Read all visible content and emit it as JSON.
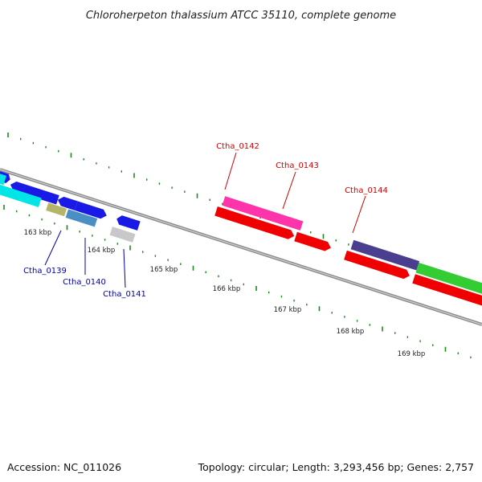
{
  "title": "Chloroherpeton thalassium ATCC 35110, complete genome",
  "footer": {
    "accession": "Accession: NC_011026",
    "summary": "Topology: circular; Length: 3,293,456 bp; Genes: 2,757"
  },
  "colors": {
    "backbone": "#8c8c8c",
    "tick": "#1a8a1a",
    "label_red": "#cc0000",
    "label_blue": "#0000aa"
  },
  "scale_labels": [
    "163 kbp",
    "164 kbp",
    "165 kbp",
    "166 kbp",
    "167 kbp",
    "168 kbp",
    "169 kbp"
  ],
  "gene_labels": [
    {
      "name": "Ctha_0139",
      "color": "#0000aa"
    },
    {
      "name": "Ctha_0140",
      "color": "#0000aa"
    },
    {
      "name": "Ctha_0141",
      "color": "#0000aa"
    },
    {
      "name": "Ctha_0142",
      "color": "#cc0000"
    },
    {
      "name": "Ctha_0143",
      "color": "#cc0000"
    },
    {
      "name": "Ctha_0144",
      "color": "#cc0000"
    }
  ],
  "features": [
    {
      "name": "blue-gene-top-left",
      "color": "#1a1ae6",
      "strand": "+"
    },
    {
      "name": "blue-gene-arrow-left",
      "color": "#1a1ae6",
      "strand": "-"
    },
    {
      "name": "blue-gene-small-left",
      "color": "#1a1ae6",
      "strand": "-"
    },
    {
      "name": "cyan-gene-long",
      "color": "#00e5e5",
      "strand": "+"
    },
    {
      "name": "cyan-gene-short",
      "color": "#00e5e5",
      "strand": "+"
    },
    {
      "name": "blue-gene-arrow-right",
      "color": "#1a1ae6",
      "strand": "+"
    },
    {
      "name": "khaki-gene",
      "color": "#b5b56a",
      "strand": "+"
    },
    {
      "name": "steelblue-gene",
      "color": "#4a8fc4",
      "strand": "+"
    },
    {
      "name": "blue-gene-small-mid",
      "color": "#1a1ae6",
      "strand": "-"
    },
    {
      "name": "gray-gene",
      "color": "#c8c8c8",
      "strand": "+"
    },
    {
      "name": "magenta-gene",
      "color": "#ff33aa",
      "strand": "+"
    },
    {
      "name": "red-gene-1",
      "color": "#f00000",
      "strand": "+"
    },
    {
      "name": "red-gene-2",
      "color": "#f00000",
      "strand": "+"
    },
    {
      "name": "purple-gene",
      "color": "#4a3f8f",
      "strand": "+"
    },
    {
      "name": "red-gene-3",
      "color": "#f00000",
      "strand": "+"
    },
    {
      "name": "green-gene",
      "color": "#33cc33",
      "strand": "+"
    },
    {
      "name": "red-gene-4",
      "color": "#f00000",
      "strand": "+"
    }
  ]
}
